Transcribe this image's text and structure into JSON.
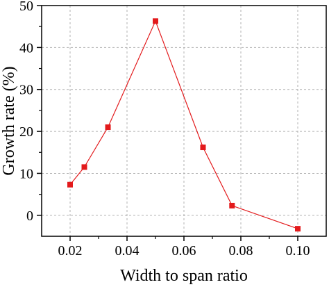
{
  "chart_data": {
    "type": "line",
    "title": "",
    "xlabel": "Width to span ratio",
    "ylabel": "Growth rate (%)",
    "xlim": [
      0.01,
      0.11
    ],
    "ylim": [
      -5,
      50
    ],
    "x_ticks": [
      0.02,
      0.04,
      0.06,
      0.08,
      0.1
    ],
    "x_tick_labels": [
      "0.02",
      "0.04",
      "0.06",
      "0.08",
      "0.10"
    ],
    "y_ticks": [
      0,
      10,
      20,
      30,
      40,
      50
    ],
    "y_tick_labels": [
      "0",
      "10",
      "20",
      "30",
      "40",
      "50"
    ],
    "grid": true,
    "legend": "none",
    "marker": "square",
    "series": [
      {
        "color": "#e31a1c",
        "x": [
          0.02,
          0.025,
          0.0333,
          0.05,
          0.0667,
          0.0769,
          0.1
        ],
        "y": [
          7.3,
          11.5,
          21.0,
          46.3,
          16.2,
          2.3,
          -3.2
        ]
      }
    ]
  }
}
